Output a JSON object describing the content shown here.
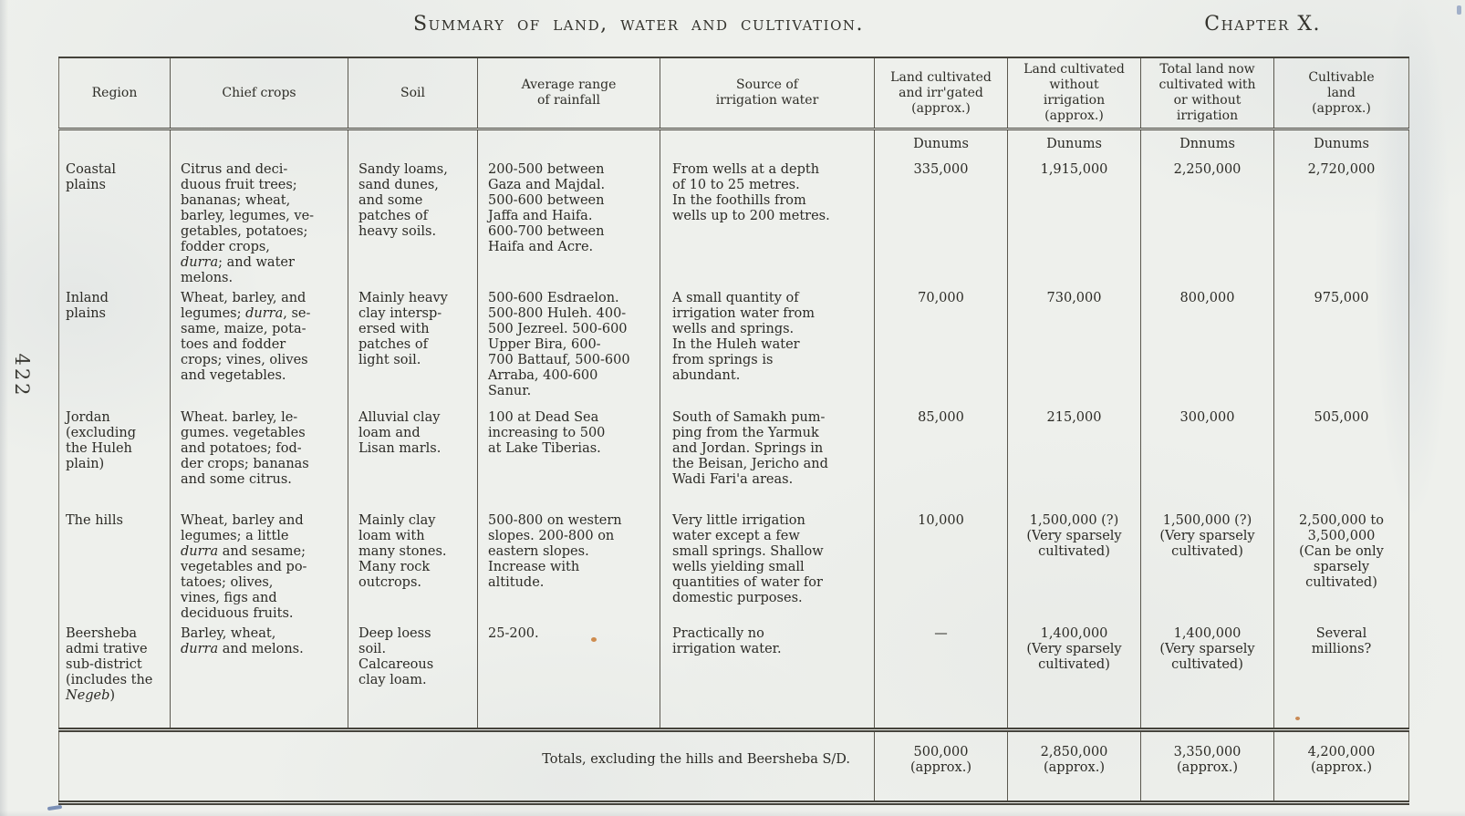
{
  "page": {
    "title": "Summary of land, water and cultivation.",
    "chapter": "Chapter X.",
    "page_number": "422"
  },
  "table": {
    "headers": [
      "Region",
      "Chief crops",
      "Soil",
      "Average range\nof rainfall",
      "Source of\nirrigation water",
      "Land cultivated\nand irr'gated\n(approx.)",
      "Land cultivated\nwithout\nirrigation\n(approx.)",
      "Total land now\ncultivated with\nor without\nirrigation",
      "Cultivable\nland\n(approx.)"
    ],
    "units": [
      "Dunums",
      "Dunums",
      "Dnnums",
      "Dunums"
    ],
    "rows": [
      {
        "region": "Coastal\nplains",
        "crops": "Citrus and deci-\nduous fruit trees;\nbananas; wheat,\nbarley, legumes, ve-\ngetables, potatoes;\nfodder crops,\n*durra*; and water\nmelons.",
        "soil": "Sandy loams,\nsand dunes,\nand some\npatches of\nheavy soils.",
        "rainfall": "200-500 between\nGaza and Majdal.\n500-600 between\nJaffa and Haifa.\n600-700 between\nHaifa and Acre.",
        "source": "From wells at a depth\nof 10 to 25 metres.\nIn the foothills from\nwells up to 200 metres.",
        "values": [
          "335,000",
          "1,915,000",
          "2,250,000",
          "2,720,000"
        ]
      },
      {
        "region": "Inland\nplains",
        "crops": "Wheat, barley, and\nlegumes; *durra*, se-\nsame, maize, pota-\ntoes and fodder\ncrops; vines, olives\nand vegetables.",
        "soil": "Mainly heavy\nclay intersp-\nersed with\npatches of\nlight soil.",
        "rainfall": "500-600 Esdraelon.\n500-800 Huleh. 400-\n500 Jezreel. 500-600\nUpper Bira, 600-\n700 Battauf, 500-600\nArraba, 400-600\nSanur.",
        "source": "A small quantity of\nirrigation water from\nwells and springs.\nIn the Huleh water\nfrom springs is\nabundant.",
        "values": [
          "70,000",
          "730,000",
          "800,000",
          "975,000"
        ]
      },
      {
        "region": "Jordan\n(excluding\nthe Huleh\nplain)",
        "crops": "Wheat. barley, le-\ngumes. vegetables\nand potatoes; fod-\nder crops; bananas\nand some citrus.",
        "soil": "Alluvial clay\nloam and\nLisan marls.",
        "rainfall": "100 at Dead Sea\nincreasing to 500\nat Lake Tiberias.",
        "source": "South of Samakh pum-\nping from the Yarmuk\nand Jordan. Springs in\nthe Beisan, Jericho and\nWadi Fari'a areas.",
        "values": [
          "85,000",
          "215,000",
          "300,000",
          "505,000"
        ]
      },
      {
        "region": "The hills",
        "crops": "Wheat, barley and\nlegumes; a little\n*durra* and sesame;\nvegetables and po-\ntatoes; olives,\nvines, figs and\ndeciduous fruits.",
        "soil": "Mainly clay\nloam with\nmany stones.\nMany rock\noutcrops.",
        "rainfall": "500-800 on western\nslopes. 200-800 on\neastern slopes.\nIncrease with\naltitude.",
        "source": "Very little irrigation\nwater except a few\nsmall springs. Shallow\nwells yielding small\nquantities of water for\ndomestic purposes.",
        "values": [
          "10,000",
          "1,500,000 (?)\n(Very sparsely\ncultivated)",
          "1,500,000 (?)\n(Very sparsely\ncultivated)",
          "2,500,000 to\n3,500,000\n(Can be only\nsparsely\ncultivated)"
        ]
      },
      {
        "region": "Beersheba\nadmi trative\nsub-district\n(includes the\n*Negeb*)",
        "crops": "Barley, wheat,\n*durra* and melons.",
        "soil": "Deep loess\nsoil.\nCalcareous\nclay loam.",
        "rainfall": "25-200.",
        "source": "Practically no\nirrigation water.",
        "values": [
          "—",
          "1,400,000\n(Very sparsely\ncultivated)",
          "1,400,000\n(Very sparsely\ncultivated)",
          "Several\nmillions?"
        ]
      }
    ],
    "totals": {
      "label": "Totals, excluding the hills and Beersheba S/D.",
      "values": [
        "500,000\n(approx.)",
        "2,850,000\n(approx.)",
        "3,350,000\n(approx.)",
        "4,200,000\n(approx.)"
      ]
    }
  }
}
